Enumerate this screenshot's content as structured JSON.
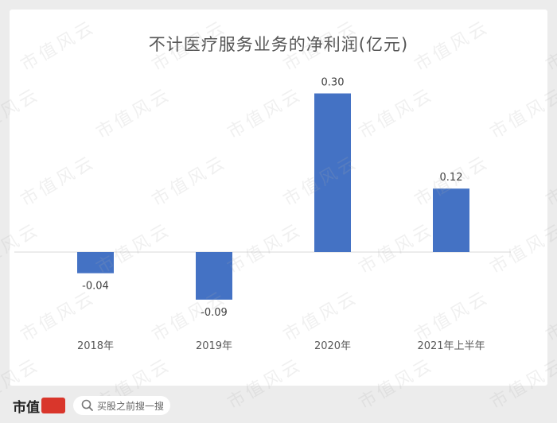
{
  "chart_data": {
    "type": "bar",
    "title": "不计医疗服务业务的净利润(亿元)",
    "categories": [
      "2018年",
      "2019年",
      "2020年",
      "2021年上半年"
    ],
    "values": [
      -0.04,
      -0.09,
      0.3,
      0.12
    ],
    "data_labels": [
      "-0.04",
      "-0.09",
      "0.30",
      "0.12"
    ],
    "bar_color": "#4472c4",
    "grid": false,
    "legend": "none"
  },
  "watermark": {
    "text": "市值风云"
  },
  "footer": {
    "logo_text": "市值",
    "logo_seal_text": "风云",
    "search_text": "买股之前搜一搜"
  },
  "colors": {
    "background": "#ececec",
    "card": "#ffffff",
    "bar": "#4472c4",
    "axis": "#d9d9d9",
    "text": "#595959"
  }
}
